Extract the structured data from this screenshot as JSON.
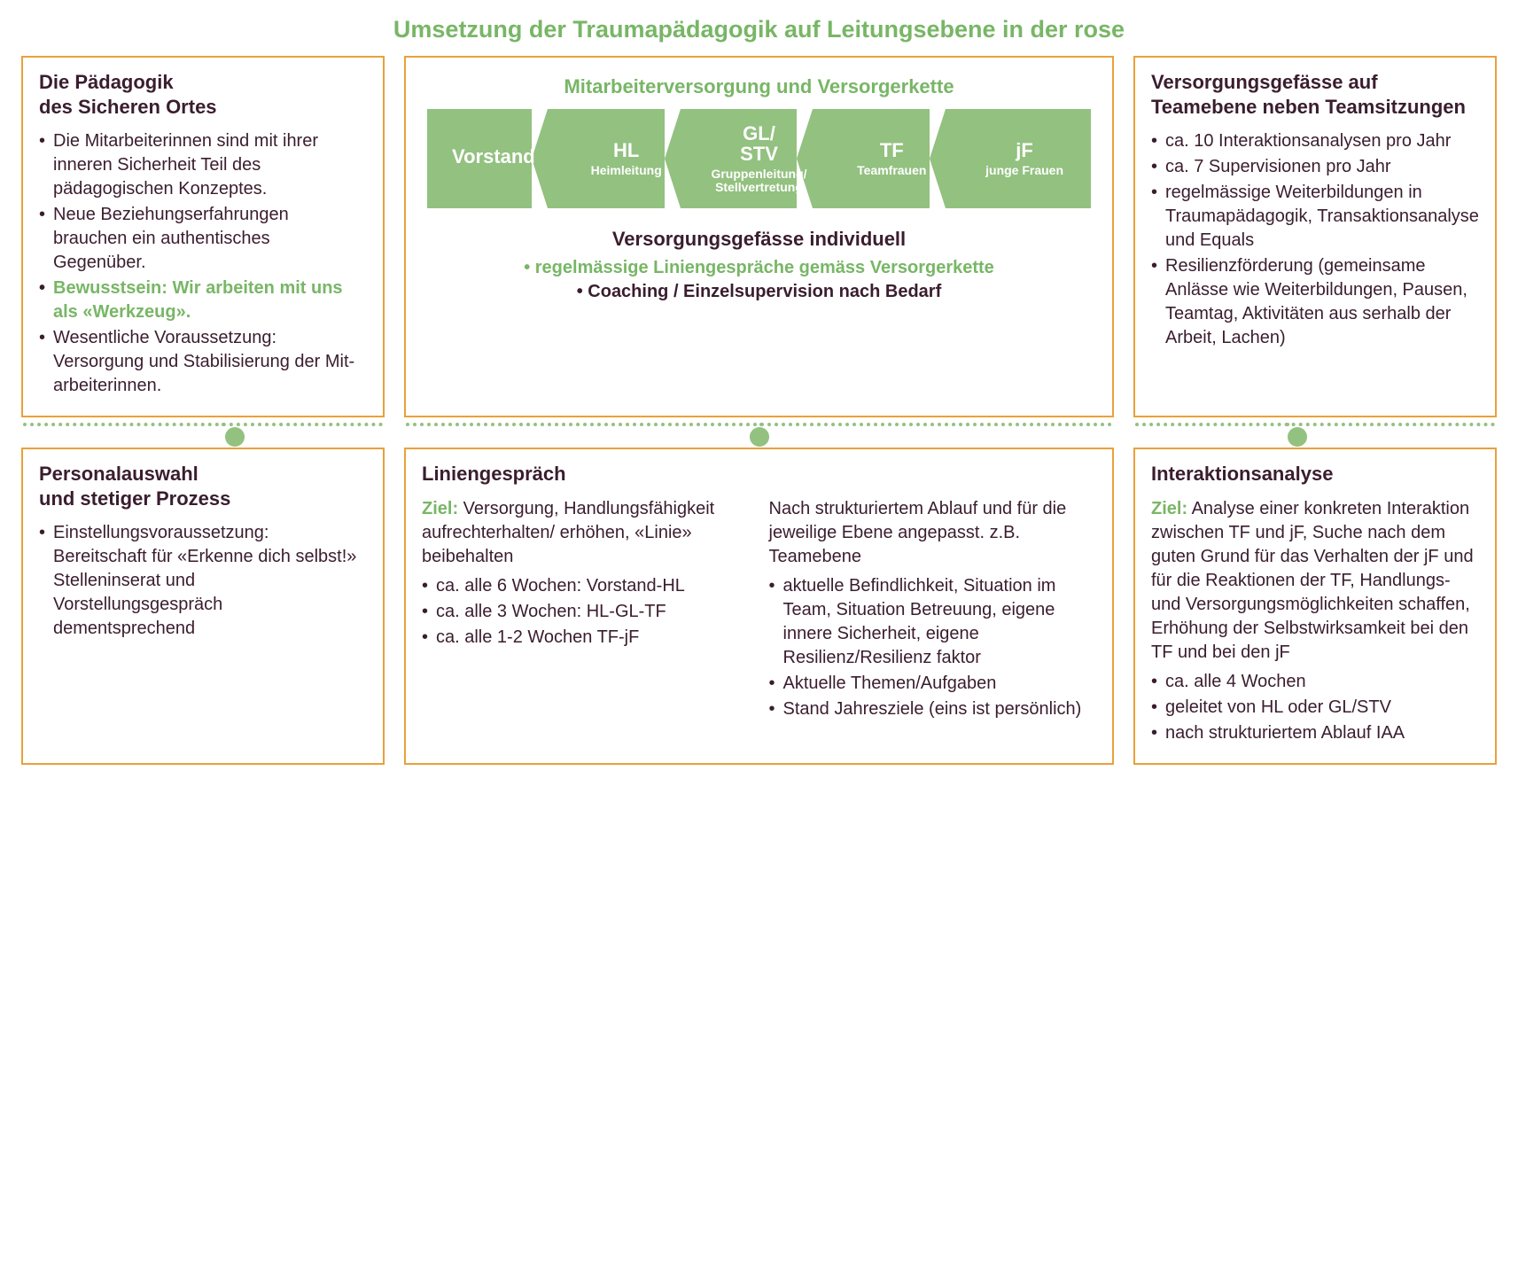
{
  "title": "Umsetzung der Traumapädagogik auf Leitungsebene in der rose",
  "colors": {
    "accent_green": "#78b666",
    "chain_green": "#93c180",
    "box_border": "#e9a13b",
    "text_dark": "#3a1d2e",
    "white": "#ffffff"
  },
  "layout": {
    "grid_cols": [
      "410px",
      "1fr",
      "410px"
    ],
    "dot_positions_pct": [
      14.5,
      50,
      86.5
    ]
  },
  "boxes": {
    "top_left": {
      "heading": "Die Pädagogik\ndes Sicheren Ortes",
      "items": [
        {
          "text": "Die Mitarbeiterinnen sind mit ihrer inneren Sicherheit Teil des pädagogischen Konzeptes.",
          "style": "normal"
        },
        {
          "text": "Neue Beziehungs­erfahrungen brauchen ein authentisches Gegenüber.",
          "style": "normal"
        },
        {
          "text": "Bewusstsein: Wir arbeiten mit uns als «Werkzeug».",
          "style": "green"
        },
        {
          "text": "Wesentliche Voraus­setzung: Versorgung und Stabilisierung der Mit­arbeiterinnen.",
          "style": "normal"
        }
      ]
    },
    "top_center": {
      "heading": "Mitarbeiterversorgung und Versorgerkette",
      "chain": [
        {
          "main": "Vorstand",
          "sub": ""
        },
        {
          "main": "HL",
          "sub": "Heimleitung"
        },
        {
          "main": "GL/\nSTV",
          "sub": "Gruppenleitung/\nStellvertretung"
        },
        {
          "main": "TF",
          "sub": "Teamfrauen"
        },
        {
          "main": "jF",
          "sub": "junge Frauen"
        }
      ],
      "sub1": "Versorgungsgefässe individuell",
      "sub2": "• regelmässige Liniengespräche gemäss Versorgerkette",
      "sub3": "• Coaching / Einzelsupervision nach Bedarf"
    },
    "top_right": {
      "heading": "Versorgungsgefässe auf Teamebene neben Teamsitzungen",
      "items": [
        {
          "text": "ca. 10 Interaktions­analysen pro Jahr"
        },
        {
          "text": "ca. 7 Supervisionen pro Jahr"
        },
        {
          "text": "regelmässige Weiter­bildungen in Trauma­pädagogik, Transaktions­analyse und Equals"
        },
        {
          "text": "Resilienzförderung (gemeinsame Anlässe wie Weiterbildungen, Pausen, Teamtag, Aktivitäten aus serhalb der Arbeit, Lachen)"
        }
      ]
    },
    "bottom_left": {
      "heading": "Personalauswahl\nund stetiger Prozess",
      "items": [
        {
          "text": "Einstellungsvoraussetzung: Bereitschaft für «Erkenne dich selbst!» Stelleninserat und Vorstellungsgespräch dementsprechend"
        }
      ]
    },
    "bottom_center": {
      "heading": "Liniengespräch",
      "left": {
        "ziel_label": "Ziel:",
        "ziel_text": " Versorgung, Handlungs­fähigkeit aufrechterhalten/ erhöhen, «Linie» beibehalten",
        "items": [
          "ca. alle 6 Wochen: Vorstand-HL",
          "ca. alle 3 Wochen: HL-GL-TF",
          "ca. alle 1-2 Wochen TF-jF"
        ]
      },
      "right": {
        "intro": "Nach strukturiertem Ablauf und für die jeweilige Ebene angepasst. z.B. Teamebene",
        "items": [
          "aktuelle Befindlichkeit, Situation im Team, Situation Betreuung, eigene innere Sicherheit, eigene Resilienz/Resilienz faktor",
          "Aktuelle Themen/Aufgaben",
          "Stand Jahresziele (eins ist persönlich)"
        ]
      }
    },
    "bottom_right": {
      "heading": "Interaktionsanalyse",
      "ziel_label": "Ziel:",
      "ziel_text": " Analyse einer konkreten Interaktion zwischen TF und jF, Suche nach dem guten Grund für das Verhalten der jF und für die Reaktionen der TF, Handlungs- und Versorgungsmöglichkeiten schaffen, Erhöhung der Selbstwirksamkeit bei den TF und bei den jF",
      "items": [
        "ca. alle 4 Wochen",
        "geleitet von HL oder GL/STV",
        "nach strukturiertem Ablauf IAA"
      ]
    }
  }
}
